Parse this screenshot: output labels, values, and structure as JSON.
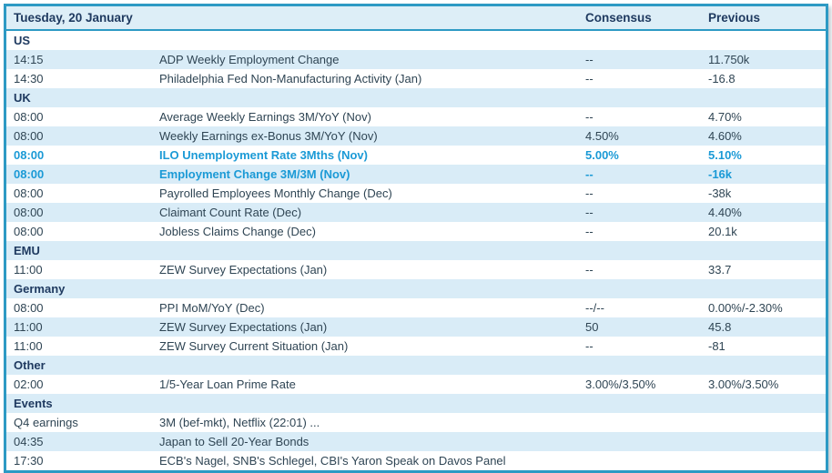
{
  "colors": {
    "border": "#2d9ac4",
    "header_text": "#1f3a60",
    "body_text": "#2f4554",
    "zebra_blue": "#d9ecf7",
    "header_bg": "#ddeef7",
    "highlight_blue": "#1b9ad6",
    "row_white": "#ffffff"
  },
  "calendar": {
    "date_title": "Tuesday, 20 January",
    "columns": {
      "consensus": "Consensus",
      "previous": "Previous"
    },
    "rows": [
      {
        "type": "section",
        "label": "US"
      },
      {
        "type": "event",
        "time": "14:15",
        "event": "ADP Weekly Employment Change",
        "consensus": "--",
        "previous": "11.750k"
      },
      {
        "type": "event",
        "time": "14:30",
        "event": "Philadelphia Fed Non-Manufacturing Activity (Jan)",
        "consensus": "--",
        "previous": "-16.8"
      },
      {
        "type": "section",
        "label": "UK"
      },
      {
        "type": "event",
        "time": "08:00",
        "event": "Average Weekly Earnings 3M/YoY (Nov)",
        "consensus": "--",
        "previous": "4.70%"
      },
      {
        "type": "event",
        "time": "08:00",
        "event": "Weekly Earnings ex-Bonus 3M/YoY (Nov)",
        "consensus": "4.50%",
        "previous": "4.60%"
      },
      {
        "type": "event",
        "time": "08:00",
        "event": "ILO Unemployment Rate 3Mths (Nov)",
        "consensus": "5.00%",
        "previous": "5.10%",
        "highlight": true
      },
      {
        "type": "event",
        "time": "08:00",
        "event": "Employment Change 3M/3M (Nov)",
        "consensus": "--",
        "previous": "-16k",
        "highlight": true
      },
      {
        "type": "event",
        "time": "08:00",
        "event": "Payrolled Employees Monthly Change (Dec)",
        "consensus": "--",
        "previous": "-38k"
      },
      {
        "type": "event",
        "time": "08:00",
        "event": "Claimant Count Rate (Dec)",
        "consensus": "--",
        "previous": "4.40%"
      },
      {
        "type": "event",
        "time": "08:00",
        "event": "Jobless Claims Change (Dec)",
        "consensus": "--",
        "previous": "20.1k"
      },
      {
        "type": "section",
        "label": "EMU"
      },
      {
        "type": "event",
        "time": "11:00",
        "event": "ZEW Survey Expectations (Jan)",
        "consensus": "--",
        "previous": "33.7"
      },
      {
        "type": "section",
        "label": "Germany"
      },
      {
        "type": "event",
        "time": "08:00",
        "event": "PPI MoM/YoY (Dec)",
        "consensus": "--/--",
        "previous": "0.00%/-2.30%"
      },
      {
        "type": "event",
        "time": "11:00",
        "event": "ZEW Survey Expectations (Jan)",
        "consensus": "50",
        "previous": "45.8"
      },
      {
        "type": "event",
        "time": "11:00",
        "event": "ZEW Survey Current Situation (Jan)",
        "consensus": "--",
        "previous": "-81"
      },
      {
        "type": "section",
        "label": "Other"
      },
      {
        "type": "event",
        "time": "02:00",
        "event": "1/5-Year Loan Prime Rate",
        "consensus": "3.00%/3.50%",
        "previous": "3.00%/3.50%"
      },
      {
        "type": "section",
        "label": "Events"
      },
      {
        "type": "event",
        "time": "Q4 earnings",
        "event": "3M (bef-mkt), Netflix (22:01) ...",
        "consensus": "",
        "previous": ""
      },
      {
        "type": "event",
        "time": "04:35",
        "event": "Japan to Sell 20-Year Bonds",
        "consensus": "",
        "previous": ""
      },
      {
        "type": "event",
        "time": "17:30",
        "event": "ECB's Nagel, SNB's Schlegel, CBI's Yaron Speak on Davos Panel",
        "consensus": "",
        "previous": ""
      }
    ]
  }
}
